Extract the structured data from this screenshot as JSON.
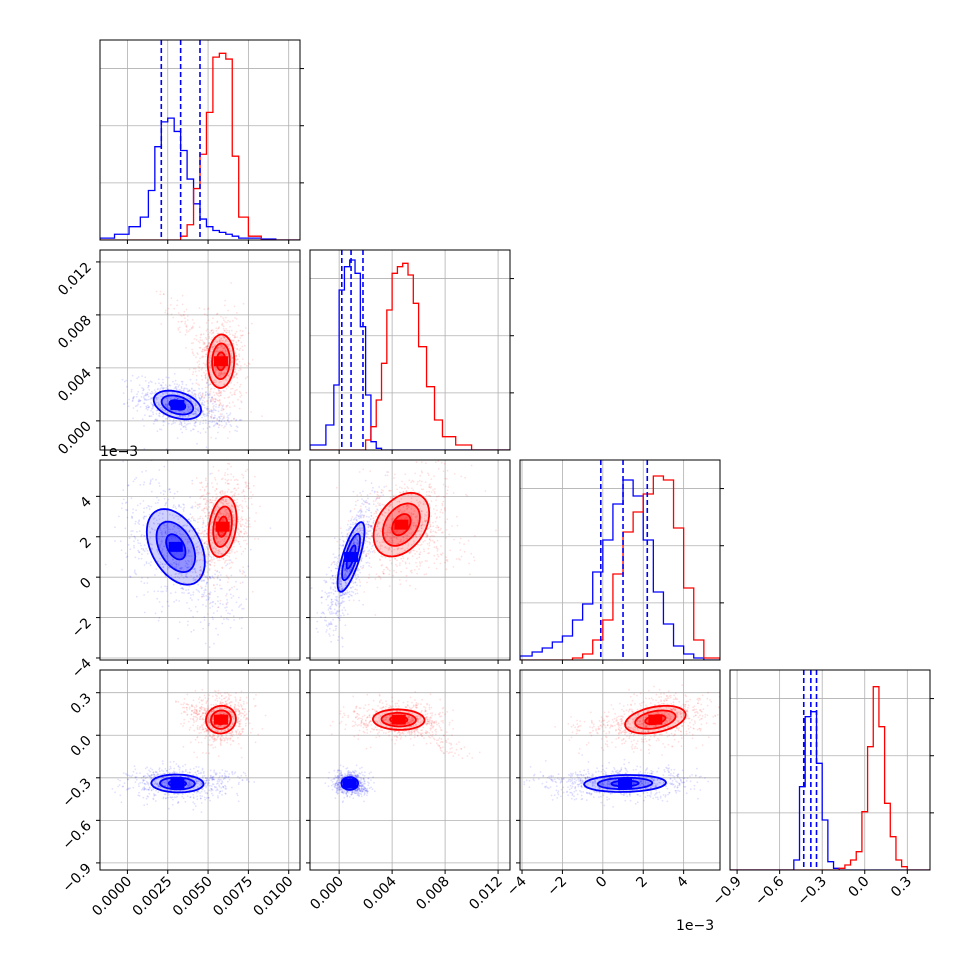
{
  "chart_data": {
    "type": "corner",
    "grid": true,
    "series": [
      {
        "color": "#0000ff"
      },
      {
        "color": "#ff0000"
      }
    ],
    "axes_ranges": [
      {
        "range": [
          -0.0017,
          0.0107
        ],
        "ticks": [
          0.0,
          0.0025,
          0.005,
          0.0075,
          0.01
        ],
        "tick_labels": [
          "0.0000",
          "0.0025",
          "0.0050",
          "0.0075",
          "0.0100"
        ]
      },
      {
        "range": [
          -0.0022,
          0.0129
        ],
        "ticks": [
          0.0,
          0.004,
          0.008,
          0.012
        ],
        "tick_labels": [
          "0.000",
          "0.004",
          "0.008",
          "0.012"
        ]
      },
      {
        "range": [
          -4.1,
          5.8
        ],
        "ticks": [
          -4,
          -2,
          0,
          2,
          4
        ],
        "tick_labels": [
          "−4",
          "−2",
          "0",
          "2",
          "4"
        ],
        "offset_label": "1e−3"
      },
      {
        "range": [
          -0.95,
          0.46
        ],
        "ticks": [
          -0.9,
          -0.6,
          -0.3,
          0.0,
          0.3
        ],
        "tick_labels": [
          "−0.9",
          "−0.6",
          "−0.3",
          "0.0",
          "0.3"
        ]
      }
    ],
    "offset_labels": {
      "row_2_y": "1e−3",
      "col_2_x": "1e−3"
    },
    "diagonal": [
      {
        "variable": 0,
        "ymax": 1.05,
        "quantiles": [
          0.0021,
          0.0033,
          0.0045
        ],
        "bin_edges": [
          -0.0017,
          -0.0008,
          0.0001,
          0.0008,
          0.0013,
          0.0017,
          0.0021,
          0.0025,
          0.0029,
          0.0033,
          0.0037,
          0.0041,
          0.0045,
          0.0049,
          0.0053,
          0.0057,
          0.0061,
          0.0065,
          0.0069,
          0.0075,
          0.0083,
          0.0092,
          0.0107
        ],
        "blue": [
          0.01,
          0.03,
          0.07,
          0.12,
          0.26,
          0.49,
          0.62,
          0.64,
          0.57,
          0.47,
          0.32,
          0.19,
          0.11,
          0.07,
          0.05,
          0.04,
          0.03,
          0.02,
          0.01,
          0.01,
          0.005,
          0.0
        ],
        "red": [
          0.0,
          0.0,
          0.0,
          0.0,
          0.0,
          0.0,
          0.0,
          0.0,
          0.0,
          0.02,
          0.08,
          0.27,
          0.45,
          0.67,
          0.96,
          0.98,
          0.95,
          0.44,
          0.12,
          0.02,
          0.0,
          0.0
        ]
      },
      {
        "variable": 1,
        "ymax": 1.2,
        "quantiles": [
          0.0002,
          0.0009,
          0.0018
        ],
        "bin_edges": [
          -0.0022,
          -0.001,
          -0.0004,
          0.0,
          0.0004,
          0.0008,
          0.0012,
          0.0016,
          0.002,
          0.0024,
          0.0028,
          0.0032,
          0.0036,
          0.004,
          0.0044,
          0.0048,
          0.0052,
          0.0056,
          0.006,
          0.0066,
          0.0072,
          0.0078,
          0.0088,
          0.01,
          0.0129
        ],
        "blue": [
          0.03,
          0.15,
          0.39,
          0.96,
          1.1,
          1.14,
          1.06,
          0.74,
          0.33,
          0.05,
          0.01,
          0.0,
          0.0,
          0.0,
          0.0,
          0.0,
          0.0,
          0.0,
          0.0,
          0.0,
          0.0,
          0.0,
          0.0,
          0.0
        ],
        "red": [
          0.0,
          0.0,
          0.0,
          0.0,
          0.0,
          0.0,
          0.0,
          0.0,
          0.06,
          0.14,
          0.3,
          0.52,
          0.84,
          1.06,
          1.1,
          1.12,
          1.05,
          0.88,
          0.62,
          0.38,
          0.18,
          0.08,
          0.03,
          0.0
        ]
      },
      {
        "variable": 2,
        "ymax": 1.0,
        "quantiles": [
          -0.1,
          1.0,
          2.2
        ],
        "bin_edges": [
          -4.1,
          -3.5,
          -3.0,
          -2.5,
          -2.0,
          -1.5,
          -1.0,
          -0.5,
          0.0,
          0.5,
          1.0,
          1.5,
          2.0,
          2.5,
          3.0,
          3.5,
          4.0,
          4.5,
          5.0,
          5.8
        ],
        "blue": [
          0.02,
          0.04,
          0.06,
          0.09,
          0.12,
          0.2,
          0.28,
          0.44,
          0.6,
          0.78,
          0.9,
          0.82,
          0.6,
          0.34,
          0.18,
          0.07,
          0.03,
          0.01,
          0.0
        ],
        "red": [
          0.0,
          0.0,
          0.0,
          0.0,
          0.0,
          0.01,
          0.03,
          0.1,
          0.2,
          0.43,
          0.64,
          0.74,
          0.83,
          0.92,
          0.9,
          0.66,
          0.36,
          0.1,
          0.01
        ]
      },
      {
        "variable": 3,
        "ymax": 1.2,
        "quantiles": [
          -0.43,
          -0.38,
          -0.34
        ],
        "bin_edges": [
          -0.95,
          -0.5,
          -0.46,
          -0.42,
          -0.38,
          -0.34,
          -0.3,
          -0.26,
          -0.22,
          -0.18,
          -0.14,
          -0.1,
          -0.06,
          -0.02,
          0.02,
          0.06,
          0.1,
          0.14,
          0.18,
          0.22,
          0.26,
          0.3,
          0.46
        ],
        "blue": [
          0.0,
          0.06,
          0.5,
          0.92,
          0.95,
          0.64,
          0.3,
          0.05,
          0.01,
          0.0,
          0.0,
          0.0,
          0.0,
          0.0,
          0.0,
          0.0,
          0.0,
          0.0,
          0.0,
          0.0,
          0.0,
          0.0
        ],
        "red": [
          0.0,
          0.0,
          0.0,
          0.0,
          0.0,
          0.0,
          0.0,
          0.0,
          0.0,
          0.01,
          0.03,
          0.06,
          0.11,
          0.35,
          0.74,
          1.1,
          0.86,
          0.4,
          0.2,
          0.06,
          0.02,
          0.0
        ]
      }
    ],
    "pairs": [
      {
        "x_var": 0,
        "y_var": 1,
        "blue": {
          "mean": [
            0.0031,
            0.0012
          ],
          "sd": [
            0.00098,
            0.00072
          ],
          "rho": -0.35,
          "tail": [
            0.0068,
            -0.0004
          ]
        },
        "red": {
          "mean": [
            0.0058,
            0.0045
          ],
          "sd": [
            0.00055,
            0.00135
          ],
          "rho": 0.05,
          "tail": [
            0.002,
            0.0095
          ]
        }
      },
      {
        "x_var": 0,
        "y_var": 2,
        "blue": {
          "mean": [
            0.003,
            1.5
          ],
          "sd": [
            0.0012,
            1.25
          ],
          "rho": -0.4,
          "tail": [
            0.007,
            -2.5
          ]
        },
        "red": {
          "mean": [
            0.0059,
            2.5
          ],
          "sd": [
            0.00058,
            1.0
          ],
          "rho": 0.25,
          "tail": [
            0.0045,
            4.5
          ]
        }
      },
      {
        "x_var": 0,
        "y_var": 3,
        "blue": {
          "mean": [
            0.0031,
            -0.34
          ],
          "sd": [
            0.00108,
            0.042
          ],
          "rho": -0.05,
          "tail": [
            0.0072,
            -0.28
          ]
        },
        "red": {
          "mean": [
            0.0058,
            0.11
          ],
          "sd": [
            0.00062,
            0.065
          ],
          "rho": 0.05,
          "tail": [
            0.0035,
            0.2
          ]
        }
      },
      {
        "x_var": 1,
        "y_var": 2,
        "blue": {
          "mean": [
            0.0009,
            1.0
          ],
          "sd": [
            0.00068,
            1.15
          ],
          "rho": 0.75,
          "tail": [
            -0.001,
            -2.8
          ]
        },
        "red": {
          "mean": [
            0.0047,
            2.6
          ],
          "sd": [
            0.0014,
            1.05
          ],
          "rho": 0.35,
          "tail": [
            0.0095,
            1.2
          ]
        }
      },
      {
        "x_var": 1,
        "y_var": 3,
        "blue": {
          "mean": [
            0.0008,
            -0.34
          ],
          "sd": [
            0.00042,
            0.03
          ],
          "rho": 0.0,
          "tail": [
            0.0022,
            -0.4
          ]
        },
        "red": {
          "mean": [
            0.0045,
            0.11
          ],
          "sd": [
            0.0013,
            0.048
          ],
          "rho": -0.05,
          "tail": [
            0.0095,
            -0.15
          ]
        }
      },
      {
        "x_var": 2,
        "y_var": 3,
        "blue": {
          "mean": [
            1.1,
            -0.34
          ],
          "sd": [
            1.35,
            0.04
          ],
          "rho": 0.1,
          "tail": [
            -3.0,
            -0.3
          ]
        },
        "red": {
          "mean": [
            2.6,
            0.11
          ],
          "sd": [
            1.0,
            0.065
          ],
          "rho": 0.35,
          "tail": [
            -1.5,
            0.05
          ]
        }
      }
    ],
    "contour_levels_sigma": [
      0.5,
      1.0,
      1.5
    ]
  }
}
